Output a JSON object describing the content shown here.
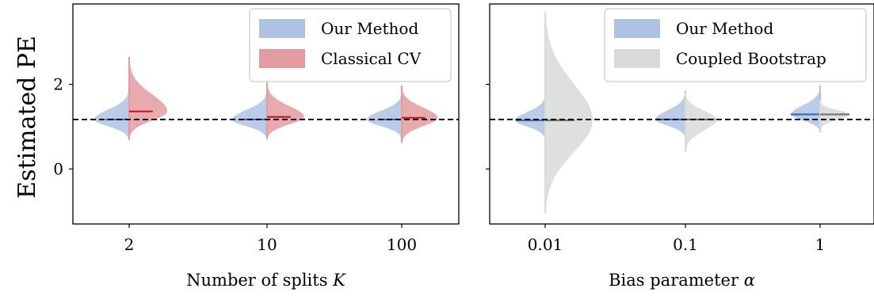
{
  "ylabel": "Estimated PE",
  "chart_data": [
    {
      "type": "violin",
      "xlabel": "Number of splits",
      "xlabel_var": "K",
      "ylabel": "Estimated PE",
      "ylim": [
        -1.3,
        3.9
      ],
      "yticks": [
        0,
        2
      ],
      "reference_line": 1.17,
      "categories": [
        "2",
        "10",
        "100"
      ],
      "legend": {
        "placement": "top-right"
      },
      "series": [
        {
          "name": "Our Method",
          "color": "#aec3e4",
          "median_color": "#3b6fc4",
          "side": "left",
          "medians": [
            1.17,
            1.17,
            1.17
          ],
          "mins": [
            0.68,
            0.7,
            0.7
          ],
          "maxs": [
            1.92,
            1.88,
            1.82
          ],
          "spread": [
            0.13,
            0.13,
            0.13
          ]
        },
        {
          "name": "Classical CV",
          "color": "#e39b9f",
          "median_color": "#c41a2a",
          "side": "right",
          "medians": [
            1.36,
            1.23,
            1.21
          ],
          "mins": [
            0.72,
            0.7,
            0.62
          ],
          "maxs": [
            2.65,
            2.05,
            1.97
          ],
          "spread": [
            0.16,
            0.15,
            0.14
          ]
        }
      ]
    },
    {
      "type": "violin",
      "xlabel": "Bias parameter",
      "xlabel_var": "α",
      "ylim": [
        -1.3,
        3.9
      ],
      "yticks": [
        0,
        2
      ],
      "reference_line": 1.17,
      "categories": [
        "0.01",
        "0.1",
        "1"
      ],
      "legend": {
        "placement": "top-right"
      },
      "series": [
        {
          "name": "Our Method",
          "color": "#aec3e4",
          "median_color": "#3b6fc4",
          "side": "left",
          "medians": [
            1.15,
            1.17,
            1.29
          ],
          "mins": [
            0.7,
            0.73,
            0.87
          ],
          "maxs": [
            1.77,
            1.85,
            1.97
          ],
          "spread": [
            0.13,
            0.13,
            0.09
          ]
        },
        {
          "name": "Coupled Bootstrap",
          "color": "#d7dad8",
          "median_color": "#6b7d72",
          "side": "right",
          "medians": [
            1.15,
            1.17,
            1.29
          ],
          "mins": [
            -1.05,
            0.4,
            0.9
          ],
          "maxs": [
            3.72,
            1.8,
            1.62
          ],
          "spread": [
            0.75,
            0.18,
            0.09
          ]
        }
      ]
    }
  ]
}
